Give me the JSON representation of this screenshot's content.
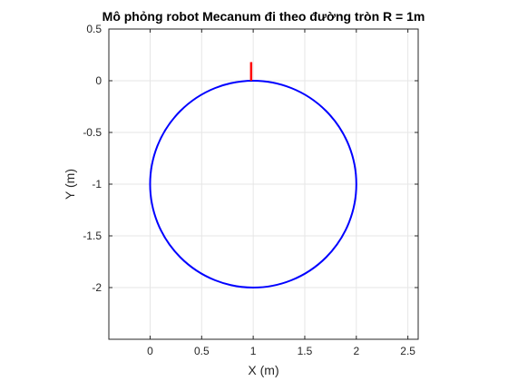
{
  "chart_data": {
    "type": "line",
    "title": "Mô phỏng robot Mecanum đi theo đường tròn R = 1m",
    "xlabel": "X (m)",
    "ylabel": "Y (m)",
    "xlim": [
      -0.4,
      2.6
    ],
    "ylim": [
      -2.5,
      0.5
    ],
    "xticks": [
      0,
      0.5,
      1,
      1.5,
      2,
      2.5
    ],
    "xtick_labels": [
      "0",
      "0.5",
      "1",
      "1.5",
      "2",
      "2.5"
    ],
    "yticks": [
      -2,
      -1.5,
      -1,
      -0.5,
      0,
      0.5
    ],
    "ytick_labels": [
      "-2",
      "-1.5",
      "-1",
      "-0.5",
      "0",
      "0.5"
    ],
    "grid": true,
    "series": [
      {
        "type": "circle",
        "center": [
          1,
          -1
        ],
        "radius": 1,
        "color": "#0000ff"
      },
      {
        "type": "segment",
        "x": [
          0.98,
          0.98
        ],
        "y": [
          0,
          0.18
        ],
        "color": "#ff0000"
      }
    ]
  }
}
